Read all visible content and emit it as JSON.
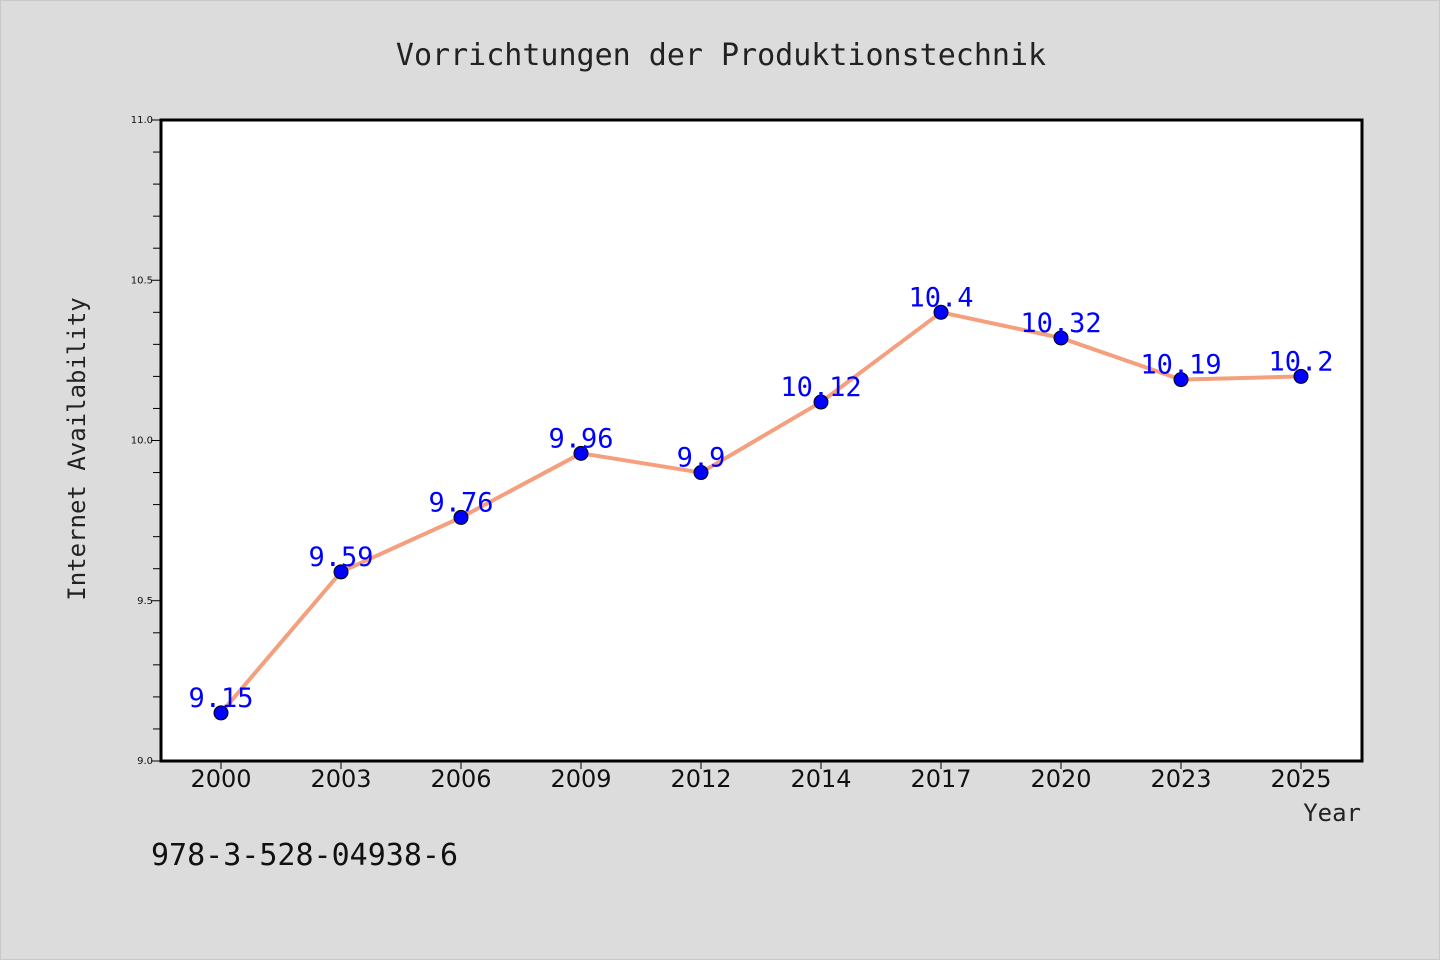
{
  "chart_data": {
    "type": "line",
    "title": "Vorrichtungen der Produktionstechnik",
    "xlabel": "Year",
    "ylabel": "Internet Availability",
    "categories": [
      "2000",
      "2003",
      "2006",
      "2009",
      "2012",
      "2014",
      "2017",
      "2020",
      "2023",
      "2025"
    ],
    "values": [
      9.15,
      9.59,
      9.76,
      9.96,
      9.9,
      10.12,
      10.4,
      10.32,
      10.19,
      10.2
    ],
    "data_labels": [
      "9.15",
      "9.59",
      "9.76",
      "9.96",
      "9.9",
      "10.12",
      "10.4",
      "10.32",
      "10.19",
      "10.2"
    ],
    "ylim": [
      9.0,
      11.0
    ],
    "yticks": [
      "9.0",
      "9.5",
      "10.0",
      "10.5",
      "11.0"
    ],
    "line_color": "#f4a07e",
    "marker_color": "#0000ff",
    "label_color": "#0000ff",
    "grid": false
  },
  "annotation": "978-3-528-04938-6"
}
